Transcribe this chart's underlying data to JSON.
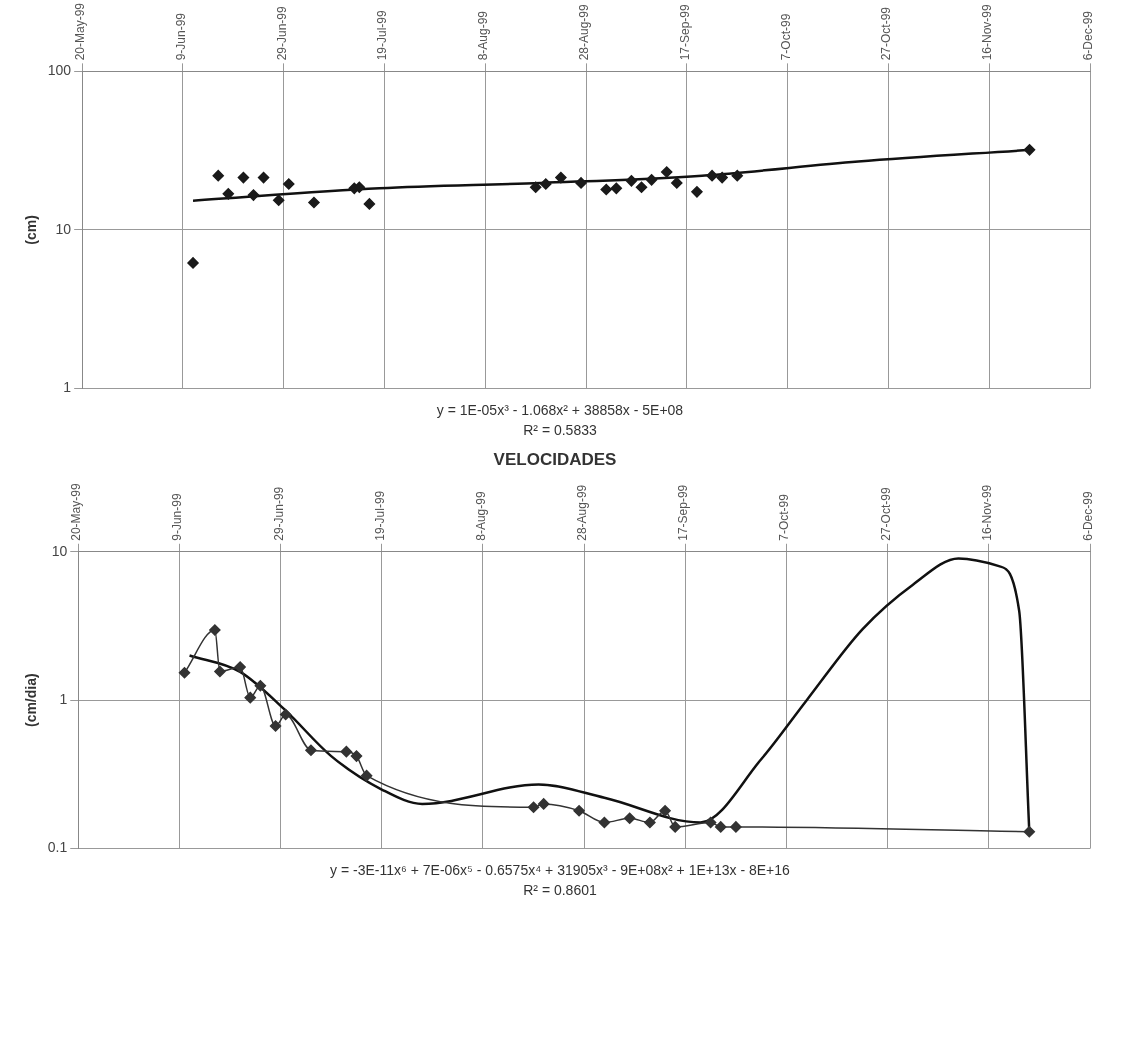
{
  "chart_data": [
    {
      "type": "scatter",
      "ylabel": "(cm)",
      "log": "y",
      "grid": true,
      "legend": false,
      "marker": "diamond",
      "xlim": [
        "1999-05-20",
        "1999-12-06"
      ],
      "xticks": [
        {
          "value": "1999-05-20",
          "label": "20-May-99"
        },
        {
          "value": "1999-06-09",
          "label": "9-Jun-99"
        },
        {
          "value": "1999-06-29",
          "label": "29-Jun-99"
        },
        {
          "value": "1999-07-19",
          "label": "19-Jul-99"
        },
        {
          "value": "1999-08-08",
          "label": "8-Aug-99"
        },
        {
          "value": "1999-08-28",
          "label": "28-Aug-99"
        },
        {
          "value": "1999-09-17",
          "label": "17-Sep-99"
        },
        {
          "value": "1999-10-07",
          "label": "7-Oct-99"
        },
        {
          "value": "1999-10-27",
          "label": "27-Oct-99"
        },
        {
          "value": "1999-11-16",
          "label": "16-Nov-99"
        },
        {
          "value": "1999-12-06",
          "label": "6-Dec-99"
        }
      ],
      "ylim": [
        1,
        100
      ],
      "yticks": [
        1,
        10,
        100
      ],
      "series": [
        {
          "color": "#1a1a1a",
          "x": [
            "1999-06-11",
            "1999-06-16",
            "1999-06-18",
            "1999-06-21",
            "1999-06-23",
            "1999-06-25",
            "1999-06-28",
            "1999-06-30",
            "1999-07-05",
            "1999-07-13",
            "1999-07-14",
            "1999-07-16",
            "1999-08-18",
            "1999-08-20",
            "1999-08-23",
            "1999-08-27",
            "1999-09-01",
            "1999-09-03",
            "1999-09-06",
            "1999-09-08",
            "1999-09-10",
            "1999-09-13",
            "1999-09-15",
            "1999-09-19",
            "1999-09-22",
            "1999-09-24",
            "1999-09-27",
            "1999-11-24"
          ],
          "values": [
            6.2,
            22,
            16.9,
            21.4,
            16.6,
            21.4,
            15.4,
            19.5,
            14.9,
            18.3,
            18.6,
            14.6,
            18.6,
            19.5,
            21.4,
            19.8,
            18,
            18.3,
            20.4,
            18.6,
            20.7,
            23.2,
            19.8,
            17.4,
            22,
            21.4,
            22,
            32
          ]
        },
        {
          "type": "line",
          "color": "#111111",
          "marker": "none",
          "x": [
            "1999-06-11",
            "1999-07-18",
            "1999-08-19",
            "1999-09-20",
            "1999-10-21",
            "1999-11-24"
          ],
          "values": [
            15.3,
            18.3,
            19.8,
            22,
            27,
            32
          ]
        }
      ],
      "annotations": [
        "y = 1E-05x³ - 1.068x² + 38858x - 5E+08",
        "R² = 0.5833"
      ]
    },
    {
      "type": "line",
      "title": "VELOCIDADES",
      "ylabel": "(cm/dia)",
      "log": "y",
      "grid": true,
      "legend": false,
      "marker": "diamond",
      "xlim": [
        "1999-05-20",
        "1999-12-06"
      ],
      "xticks": [
        {
          "value": "1999-05-20",
          "label": "20-May-99"
        },
        {
          "value": "1999-06-09",
          "label": "9-Jun-99"
        },
        {
          "value": "1999-06-29",
          "label": "29-Jun-99"
        },
        {
          "value": "1999-07-19",
          "label": "19-Jul-99"
        },
        {
          "value": "1999-08-08",
          "label": "8-Aug-99"
        },
        {
          "value": "1999-08-28",
          "label": "28-Aug-99"
        },
        {
          "value": "1999-09-17",
          "label": "17-Sep-99"
        },
        {
          "value": "1999-10-07",
          "label": "7-Oct-99"
        },
        {
          "value": "1999-10-27",
          "label": "27-Oct-99"
        },
        {
          "value": "1999-11-16",
          "label": "16-Nov-99"
        },
        {
          "value": "1999-12-06",
          "label": "6-Dec-99"
        }
      ],
      "ylim": [
        0.1,
        10
      ],
      "yticks": [
        0.1,
        1,
        10
      ],
      "series": [
        {
          "color": "#333333",
          "x": [
            "1999-06-10",
            "1999-06-16",
            "1999-06-17",
            "1999-06-21",
            "1999-06-23",
            "1999-06-25",
            "1999-06-28",
            "1999-06-30",
            "1999-07-05",
            "1999-07-12",
            "1999-07-14",
            "1999-07-16",
            "1999-08-18",
            "1999-08-20",
            "1999-08-27",
            "1999-09-01",
            "1999-09-06",
            "1999-09-10",
            "1999-09-13",
            "1999-09-15",
            "1999-09-22",
            "1999-09-24",
            "1999-09-27",
            "1999-11-24"
          ],
          "values": [
            1.53,
            2.97,
            1.56,
            1.67,
            1.04,
            1.25,
            0.67,
            0.8,
            0.46,
            0.45,
            0.42,
            0.31,
            0.19,
            0.2,
            0.18,
            0.15,
            0.16,
            0.15,
            0.18,
            0.14,
            0.15,
            0.14,
            0.14,
            0.13
          ]
        },
        {
          "type": "line",
          "color": "#111111",
          "marker": "none",
          "x": [
            "1999-06-11",
            "1999-06-21",
            "1999-06-30",
            "1999-07-09",
            "1999-07-19",
            "1999-07-27",
            "1999-08-19",
            "1999-09-01",
            "1999-09-20",
            "1999-10-02",
            "1999-10-11",
            "1999-10-22",
            "1999-11-01",
            "1999-11-10",
            "1999-11-18",
            "1999-11-22",
            "1999-11-24"
          ],
          "values": [
            2,
            1.55,
            0.85,
            0.42,
            0.25,
            0.2,
            0.27,
            0.22,
            0.15,
            0.4,
            1,
            3,
            6,
            9,
            8,
            4,
            0.13
          ]
        }
      ],
      "annotations": [
        "y = -3E-11x⁶ + 7E-06x⁵ - 0.6575x⁴ + 31905x³ - 9E+08x² + 1E+13x - 8E+16",
        "R² = 0.8601"
      ]
    }
  ]
}
